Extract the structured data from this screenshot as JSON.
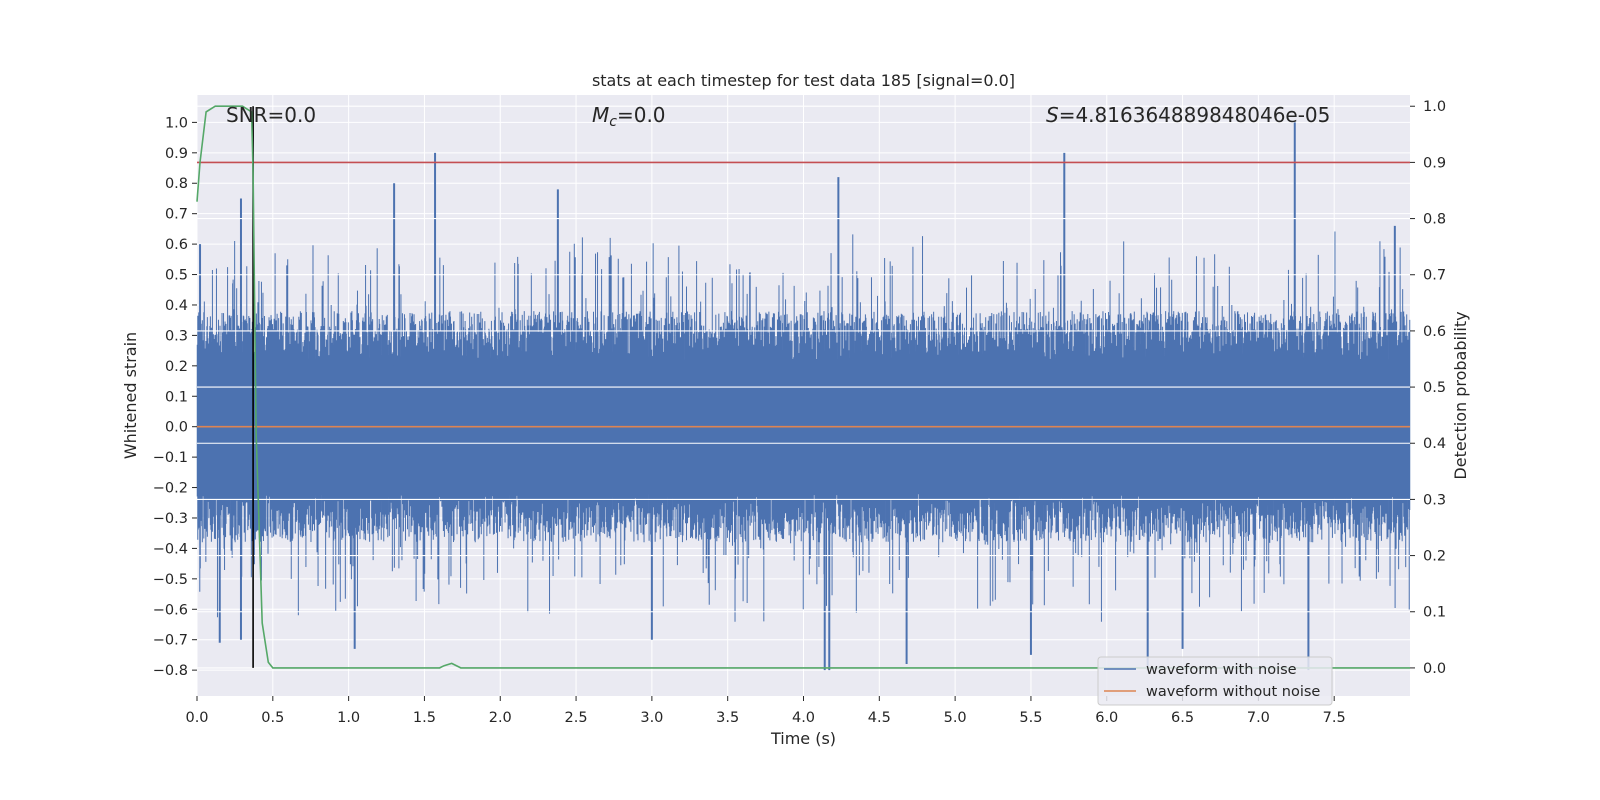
{
  "chart_data": {
    "type": "line",
    "title": "stats at each timestep for test data 185 [signal=0.0]",
    "xlabel": "Time (s)",
    "ylabel": "Whitened strain",
    "ylabel_right": "Detection probability",
    "xlim": [
      0.0,
      8.0
    ],
    "ylim": [
      -0.885,
      1.09
    ],
    "ylim_right": [
      -0.05,
      1.02
    ],
    "xticks": [
      0.0,
      0.5,
      1.0,
      1.5,
      2.0,
      2.5,
      3.0,
      3.5,
      4.0,
      4.5,
      5.0,
      5.5,
      6.0,
      6.5,
      7.0,
      7.5
    ],
    "xtick_labels": [
      "0.0",
      "0.5",
      "1.0",
      "1.5",
      "2.0",
      "2.5",
      "3.0",
      "3.5",
      "4.0",
      "4.5",
      "5.0",
      "5.5",
      "6.0",
      "6.5",
      "7.0",
      "7.5"
    ],
    "yticks": [
      -0.8,
      -0.7,
      -0.6,
      -0.5,
      -0.4,
      -0.3,
      -0.2,
      -0.1,
      0.0,
      0.1,
      0.2,
      0.3,
      0.4,
      0.5,
      0.6,
      0.7,
      0.8,
      0.9,
      1.0
    ],
    "ytick_labels": [
      "−0.8",
      "−0.7",
      "−0.6",
      "−0.5",
      "−0.4",
      "−0.3",
      "−0.2",
      "−0.1",
      "0.0",
      "0.1",
      "0.2",
      "0.3",
      "0.4",
      "0.5",
      "0.6",
      "0.7",
      "0.8",
      "0.9",
      "1.0"
    ],
    "yticks_right": [
      0.0,
      0.1,
      0.2,
      0.3,
      0.4,
      0.5,
      0.6,
      0.7,
      0.8,
      0.9,
      1.0
    ],
    "ytick_labels_right": [
      "0.0",
      "0.1",
      "0.2",
      "0.3",
      "0.4",
      "0.5",
      "0.6",
      "0.7",
      "0.8",
      "0.9",
      "1.0"
    ],
    "annotations": {
      "snr": "SNR=0.0",
      "mc_symbol": "M",
      "mc_sub": "c",
      "mc_value": "=0.0",
      "s_symbol": "S",
      "s_value": "=4.816364889848046e-05"
    },
    "threshold_right": 0.9,
    "marker_time": 0.37,
    "series": [
      {
        "name": "waveform with noise",
        "color": "#4c72b0",
        "axis": "left",
        "description": "noise, approximately symmetric about 0",
        "upper_envelope_typical": 0.3,
        "lower_envelope_typical": -0.3,
        "peaks_high": [
          [
            0.02,
            0.6
          ],
          [
            0.29,
            0.75
          ],
          [
            1.3,
            0.8
          ],
          [
            1.57,
            0.9
          ],
          [
            2.38,
            0.78
          ],
          [
            4.23,
            0.82
          ],
          [
            5.72,
            0.9
          ],
          [
            7.24,
            1.0
          ],
          [
            7.9,
            0.66
          ]
        ],
        "peaks_low": [
          [
            0.15,
            -0.71
          ],
          [
            0.29,
            -0.7
          ],
          [
            1.04,
            -0.73
          ],
          [
            3.0,
            -0.7
          ],
          [
            4.14,
            -0.8
          ],
          [
            4.17,
            -0.8
          ],
          [
            4.68,
            -0.78
          ],
          [
            5.5,
            -0.75
          ],
          [
            6.27,
            -0.8
          ],
          [
            6.5,
            -0.73
          ],
          [
            7.33,
            -0.8
          ]
        ]
      },
      {
        "name": "waveform without noise",
        "color": "#dd8452",
        "axis": "left",
        "x": [
          0.0,
          8.0
        ],
        "y": [
          0.0,
          0.0
        ]
      },
      {
        "name": "detection probability",
        "color": "#55a868",
        "axis": "right",
        "x": [
          0.0,
          0.02,
          0.06,
          0.12,
          0.2,
          0.3,
          0.36,
          0.37,
          0.39,
          0.43,
          0.47,
          0.5,
          0.8,
          1.2,
          1.6,
          1.63,
          1.68,
          1.74,
          2.5,
          4.0,
          6.0,
          8.0
        ],
        "y": [
          0.83,
          0.9,
          0.99,
          1.0,
          1.0,
          1.0,
          0.99,
          0.88,
          0.42,
          0.08,
          0.01,
          0.0,
          0.0,
          0.0,
          0.0,
          0.004,
          0.008,
          0.0,
          0.0,
          0.0,
          0.0,
          0.0
        ]
      }
    ],
    "legend": {
      "position": "lower-right",
      "items": [
        {
          "label": "waveform with noise",
          "color": "#4c72b0"
        },
        {
          "label": "waveform without noise",
          "color": "#dd8452"
        }
      ]
    },
    "colors": {
      "plot_bg": "#eaeaf2",
      "grid": "#ffffff",
      "threshold": "#c44e52",
      "marker": "#000000",
      "text": "#262626"
    }
  }
}
